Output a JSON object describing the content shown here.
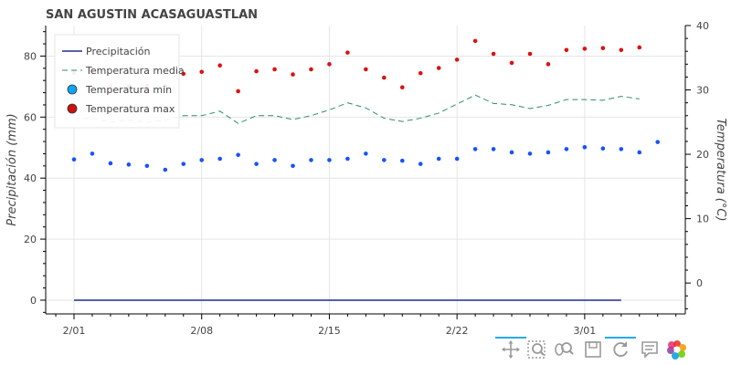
{
  "chart_data": {
    "type": "scatter",
    "title": "SAN AGUSTIN ACASAGUASTLAN",
    "xlabel": "",
    "ylabel": "Precipitación (mm)",
    "y2label": "Temperatura (°C)",
    "x_tick_labels": [
      "2/01",
      "2/08",
      "2/15",
      "2/22",
      "3/01"
    ],
    "y_ticks": [
      0,
      20,
      40,
      60,
      80
    ],
    "y2_ticks": [
      0,
      10,
      20,
      30,
      40
    ],
    "ylim": [
      -4.5,
      90
    ],
    "y2lim": [
      -4.8,
      40
    ],
    "x_start_label": "2/01",
    "legend_position": "top-left",
    "grid": true,
    "series": [
      {
        "name": "Precipitación",
        "type": "line",
        "axis": "left",
        "color": "#1f2d8f",
        "x": [
          0,
          30
        ],
        "y": [
          0,
          0
        ]
      },
      {
        "name": "Temperatura media",
        "type": "dashed-line",
        "axis": "right",
        "color": "#2e8b6e",
        "y": [
          25.5,
          25.6,
          25.0,
          25.3,
          25.0,
          25.3,
          26.0,
          26.0,
          26.7,
          24.8,
          26.0,
          26.0,
          25.4,
          26.0,
          26.9,
          28.0,
          27.2,
          25.6,
          25.1,
          25.6,
          26.4,
          27.8,
          29.2,
          27.9,
          27.7,
          27.1,
          27.6,
          28.5,
          28.5,
          28.4,
          29.0,
          28.6
        ]
      },
      {
        "name": "Temperatura min",
        "type": "scatter",
        "axis": "right",
        "color": "#1553ff",
        "y": [
          19.2,
          20.1,
          18.6,
          18.4,
          18.2,
          17.6,
          18.5,
          19.1,
          19.3,
          19.9,
          18.5,
          19.1,
          18.2,
          19.1,
          19.1,
          19.3,
          20.1,
          19.1,
          19.0,
          18.5,
          19.3,
          19.3,
          20.8,
          20.8,
          20.3,
          20.1,
          20.3,
          20.8,
          21.1,
          20.9,
          20.8,
          20.3,
          21.9
        ]
      },
      {
        "name": "Temperatura max",
        "type": "scatter",
        "axis": "right",
        "color": "#dd1111",
        "y": [
          32.7,
          32.8,
          30.6,
          30.6,
          30.6,
          30.6,
          32.5,
          32.8,
          33.8,
          29.8,
          32.9,
          33.2,
          32.4,
          33.2,
          34.0,
          35.8,
          33.2,
          31.9,
          30.4,
          32.6,
          33.4,
          34.7,
          37.6,
          35.6,
          34.2,
          35.6,
          34.0,
          36.2,
          36.4,
          36.5,
          36.2,
          36.6
        ]
      }
    ]
  },
  "toolbar": {
    "tools": [
      "pan-icon",
      "box-zoom-icon",
      "wheel-zoom-icon",
      "save-icon",
      "reset-icon",
      "hover-icon",
      "bokeh-logo-icon"
    ]
  }
}
